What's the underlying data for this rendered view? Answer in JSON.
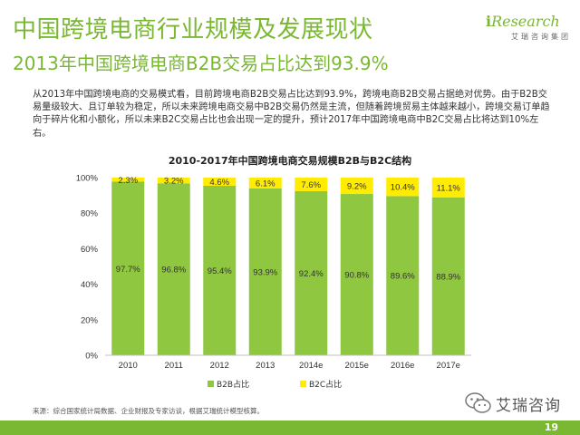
{
  "header": {
    "title": "中国跨境电商行业规模及发展现状",
    "subtitle": "2013年中国跨境电商B2B交易占比达到93.9%"
  },
  "logo": {
    "prefix": "i",
    "name": "Research",
    "sub": "艾瑞咨询集团"
  },
  "description": "从2013年中国跨境电商的交易模式看，目前跨境电商B2B交易占比达到93.9%，跨境电商B2B交易占据绝对优势。由于B2B交易量级较大、且订单较为稳定，所以未来跨境电商交易中B2B交易仍然是主流，但随着跨境贸易主体越来越小，跨境交易订单趋向于碎片化和小额化，所以未来B2C交易占比也会出现一定的提升，预计2017年中国跨境电商中B2C交易占比将达到10%左右。",
  "chart_data": {
    "type": "bar",
    "stacked": true,
    "title": "2010-2017年中国跨境电商交易规模B2B与B2C结构",
    "categories": [
      "2010",
      "2011",
      "2012",
      "2013",
      "2014e",
      "2015e",
      "2016e",
      "2017e"
    ],
    "series": [
      {
        "name": "B2B占比",
        "color": "#8fc740",
        "values": [
          97.7,
          96.8,
          95.4,
          93.9,
          92.4,
          90.8,
          89.6,
          88.9
        ],
        "labels": [
          "97.7%",
          "96.8%",
          "95.4%",
          "93.9%",
          "92.4%",
          "90.8%",
          "89.6%",
          "88.9%"
        ]
      },
      {
        "name": "B2C占比",
        "color": "#ffec00",
        "values": [
          2.3,
          3.2,
          4.6,
          6.1,
          7.6,
          9.2,
          10.4,
          11.1
        ],
        "labels": [
          "2.3%",
          "3.2%",
          "4.6%",
          "6.1%",
          "7.6%",
          "9.2%",
          "10.4%",
          "11.1%"
        ]
      }
    ],
    "ylim": [
      0,
      100
    ],
    "yticks": [
      0,
      20,
      40,
      60,
      80,
      100
    ],
    "ytick_labels": [
      "0%",
      "20%",
      "40%",
      "60%",
      "80%",
      "100%"
    ],
    "xlabel": "",
    "ylabel": "",
    "legend_position": "bottom"
  },
  "source": "来源：综合国家统计局数据、企业财报及专家访谈，根据艾瑞统计模型核算。",
  "wechat": {
    "label": "艾瑞咨询"
  },
  "footer": {
    "page_number": "19"
  },
  "colors": {
    "brand": "#7ab733",
    "b2b": "#8fc740",
    "b2c": "#ffec00"
  }
}
